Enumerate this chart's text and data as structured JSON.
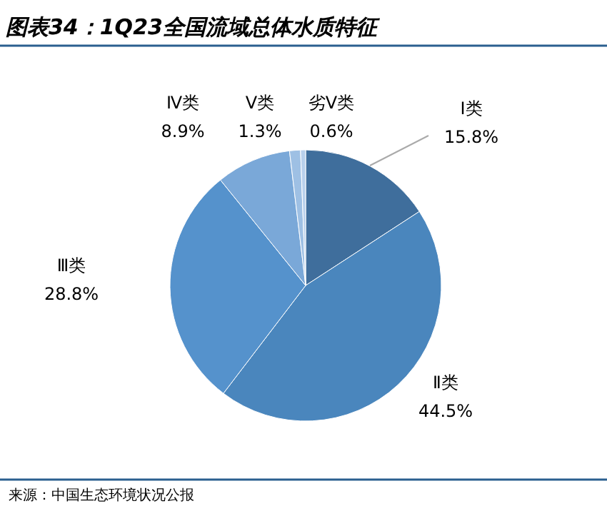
{
  "chart_data": {
    "type": "pie",
    "title": "图表34：1Q23全国流域总体水质特征",
    "categories": [
      "Ⅰ类",
      "Ⅱ类",
      "Ⅲ类",
      "Ⅳ类",
      "Ⅴ类",
      "劣Ⅴ类"
    ],
    "values": [
      15.8,
      44.5,
      28.8,
      8.9,
      1.3,
      0.6
    ],
    "value_labels": [
      "15.8%",
      "44.5%",
      "28.8%",
      "8.9%",
      "1.3%",
      "0.6%"
    ],
    "colors": [
      "#3f6e9c",
      "#4a86bd",
      "#5592cc",
      "#7aa8d8",
      "#9ec0e4",
      "#b8d0ec"
    ],
    "annotations": [
      "来源：中国生态环境状况公报"
    ]
  }
}
